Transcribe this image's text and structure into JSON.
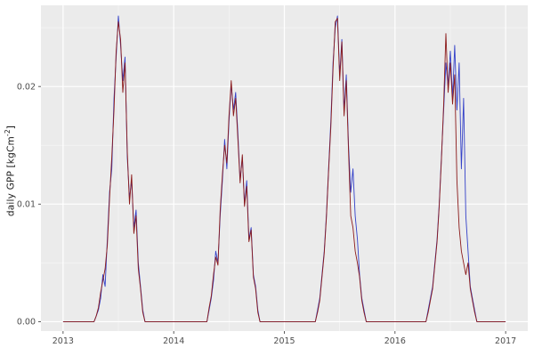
{
  "figure": {
    "y_axis_label_main": "daily GPP [kgCm",
    "y_axis_label_sup": "-2",
    "y_axis_label_close": "]"
  },
  "chart_data": {
    "type": "line",
    "title": "",
    "xlabel": "",
    "ylabel": "daily GPP [kgCm^-2]",
    "xlim": [
      2012.8,
      2017.2
    ],
    "ylim": [
      -0.0008,
      0.0269
    ],
    "x_ticks": [
      2013,
      2014,
      2015,
      2016,
      2017
    ],
    "x_tick_labels": [
      "2013",
      "2014",
      "2015",
      "2016",
      "2017"
    ],
    "x_minor_ticks": [
      2013.5,
      2014.5,
      2015.5,
      2016.5
    ],
    "y_ticks": [
      0,
      0.01,
      0.02
    ],
    "y_tick_labels": [
      "0.00",
      "0.01",
      "0.02"
    ],
    "y_minor_ticks": [
      0.005,
      0.015,
      0.025
    ],
    "grid": true,
    "legend": "none",
    "panel_bg": "#EBEBEB",
    "grid_major_color": "#FFFFFF",
    "grid_minor_color": "#F6F6F6",
    "tick_label_color": "#4D4D4D",
    "tick_mark_color": "#333333",
    "x": {
      "start": 2013.0,
      "step": 0.02,
      "count": 201
    },
    "series": [
      {
        "name": "gpp-series-blue",
        "color": "#3340C8",
        "values": [
          0,
          0,
          0,
          0,
          0,
          0,
          0,
          0,
          0,
          0,
          0,
          0,
          0,
          0,
          0,
          0.0005,
          0.001,
          0.002,
          0.004,
          0.003,
          0.007,
          0.011,
          0.013,
          0.019,
          0.0225,
          0.026,
          0.0235,
          0.0205,
          0.0225,
          0.014,
          0.0105,
          0.012,
          0.008,
          0.0095,
          0.005,
          0.003,
          0.001,
          0,
          0,
          0,
          0,
          0,
          0,
          0,
          0,
          0,
          0,
          0,
          0,
          0,
          0,
          0,
          0,
          0,
          0,
          0,
          0,
          0,
          0,
          0,
          0,
          0,
          0,
          0,
          0,
          0,
          0.001,
          0.002,
          0.0035,
          0.006,
          0.005,
          0.009,
          0.012,
          0.0155,
          0.013,
          0.017,
          0.0202,
          0.018,
          0.0195,
          0.016,
          0.012,
          0.014,
          0.01,
          0.012,
          0.007,
          0.008,
          0.004,
          0.003,
          0.001,
          0,
          0,
          0,
          0,
          0,
          0,
          0,
          0,
          0,
          0,
          0,
          0,
          0,
          0,
          0,
          0,
          0,
          0,
          0,
          0,
          0,
          0,
          0,
          0,
          0,
          0,
          0.001,
          0.002,
          0.004,
          0.006,
          0.009,
          0.013,
          0.017,
          0.022,
          0.025,
          0.026,
          0.021,
          0.024,
          0.018,
          0.021,
          0.015,
          0.011,
          0.013,
          0.009,
          0.007,
          0.004,
          0.002,
          0.001,
          0,
          0,
          0,
          0,
          0,
          0,
          0,
          0,
          0,
          0,
          0,
          0,
          0,
          0,
          0,
          0,
          0,
          0,
          0,
          0,
          0,
          0,
          0,
          0,
          0,
          0,
          0,
          0,
          0.001,
          0.002,
          0.003,
          0.005,
          0.007,
          0.01,
          0.014,
          0.018,
          0.022,
          0.02,
          0.023,
          0.019,
          0.0235,
          0.018,
          0.022,
          0.013,
          0.019,
          0.009,
          0.006,
          0.003,
          0.002,
          0.001,
          0,
          0,
          0,
          0,
          0,
          0,
          0,
          0,
          0,
          0,
          0,
          0,
          0,
          0
        ]
      },
      {
        "name": "gpp-series-red",
        "color": "#8B1A1A",
        "values": [
          0,
          0,
          0,
          0,
          0,
          0,
          0,
          0,
          0,
          0,
          0,
          0,
          0,
          0,
          0,
          0.0005,
          0.0012,
          0.0025,
          0.0035,
          0.0045,
          0.0065,
          0.0105,
          0.014,
          0.018,
          0.023,
          0.0255,
          0.024,
          0.0195,
          0.022,
          0.0145,
          0.01,
          0.0125,
          0.0075,
          0.009,
          0.0045,
          0.0028,
          0.0008,
          0,
          0,
          0,
          0,
          0,
          0,
          0,
          0,
          0,
          0,
          0,
          0,
          0,
          0,
          0,
          0,
          0,
          0,
          0,
          0,
          0,
          0,
          0,
          0,
          0,
          0,
          0,
          0,
          0,
          0.0012,
          0.0022,
          0.004,
          0.0055,
          0.0048,
          0.0095,
          0.0125,
          0.015,
          0.0135,
          0.0175,
          0.0205,
          0.0175,
          0.019,
          0.0155,
          0.0118,
          0.0142,
          0.0098,
          0.0115,
          0.0068,
          0.0078,
          0.0038,
          0.0028,
          0.0008,
          0,
          0,
          0,
          0,
          0,
          0,
          0,
          0,
          0,
          0,
          0,
          0,
          0,
          0,
          0,
          0,
          0,
          0,
          0,
          0,
          0,
          0,
          0,
          0,
          0,
          0,
          0.0008,
          0.0018,
          0.0038,
          0.0058,
          0.0088,
          0.0128,
          0.0165,
          0.0215,
          0.0255,
          0.0258,
          0.0205,
          0.0238,
          0.0175,
          0.0205,
          0.0145,
          0.009,
          0.008,
          0.006,
          0.005,
          0.0038,
          0.0018,
          0.0008,
          0,
          0,
          0,
          0,
          0,
          0,
          0,
          0,
          0,
          0,
          0,
          0,
          0,
          0,
          0,
          0,
          0,
          0,
          0,
          0,
          0,
          0,
          0,
          0,
          0,
          0,
          0,
          0,
          0.0008,
          0.0018,
          0.0028,
          0.0048,
          0.0068,
          0.0098,
          0.0138,
          0.0185,
          0.0245,
          0.0195,
          0.022,
          0.0185,
          0.021,
          0.012,
          0.008,
          0.006,
          0.005,
          0.004,
          0.005,
          0.0028,
          0.0018,
          0.0008,
          0,
          0,
          0,
          0,
          0,
          0,
          0,
          0,
          0,
          0,
          0,
          0,
          0,
          0
        ]
      }
    ]
  }
}
